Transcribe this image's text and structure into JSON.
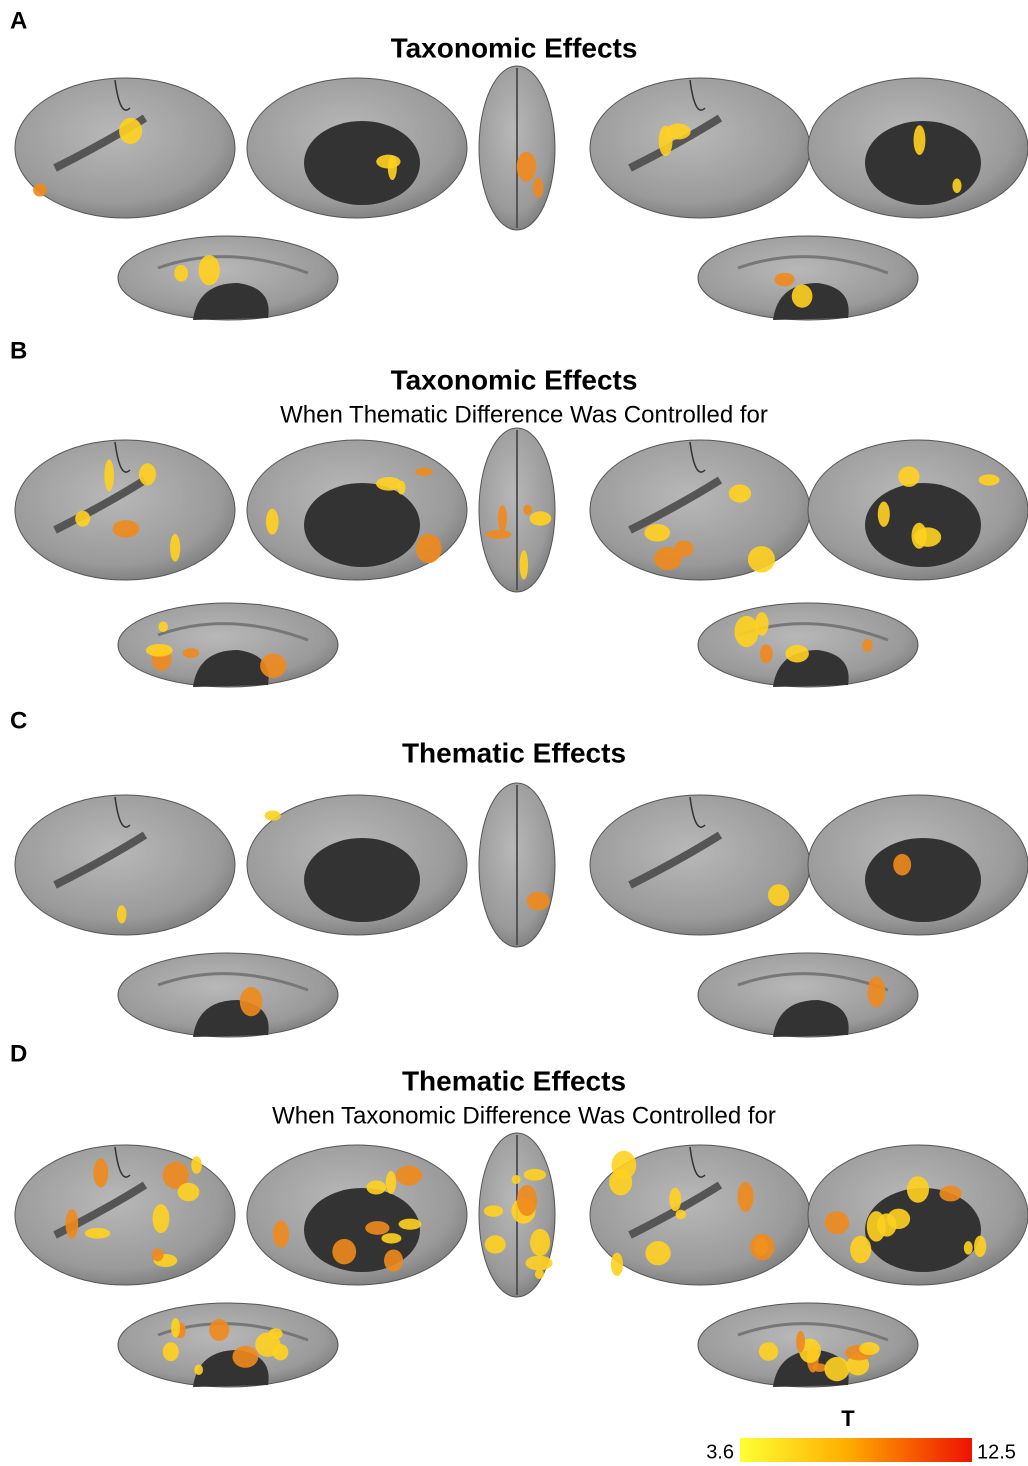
{
  "panels": [
    {
      "label": "A",
      "title": "Taxonomic Effects"
    },
    {
      "label": "B",
      "title": "Taxonomic Effects",
      "subtitle": "When Thematic Difference Was Controlled for"
    },
    {
      "label": "C",
      "title": "Thematic Effects"
    },
    {
      "label": "D",
      "title": "Thematic Effects",
      "subtitle": "When Taxonomic Difference Was Controlled for"
    }
  ],
  "colorbar": {
    "label": "T",
    "min": 3.6,
    "max": 12.5
  }
}
